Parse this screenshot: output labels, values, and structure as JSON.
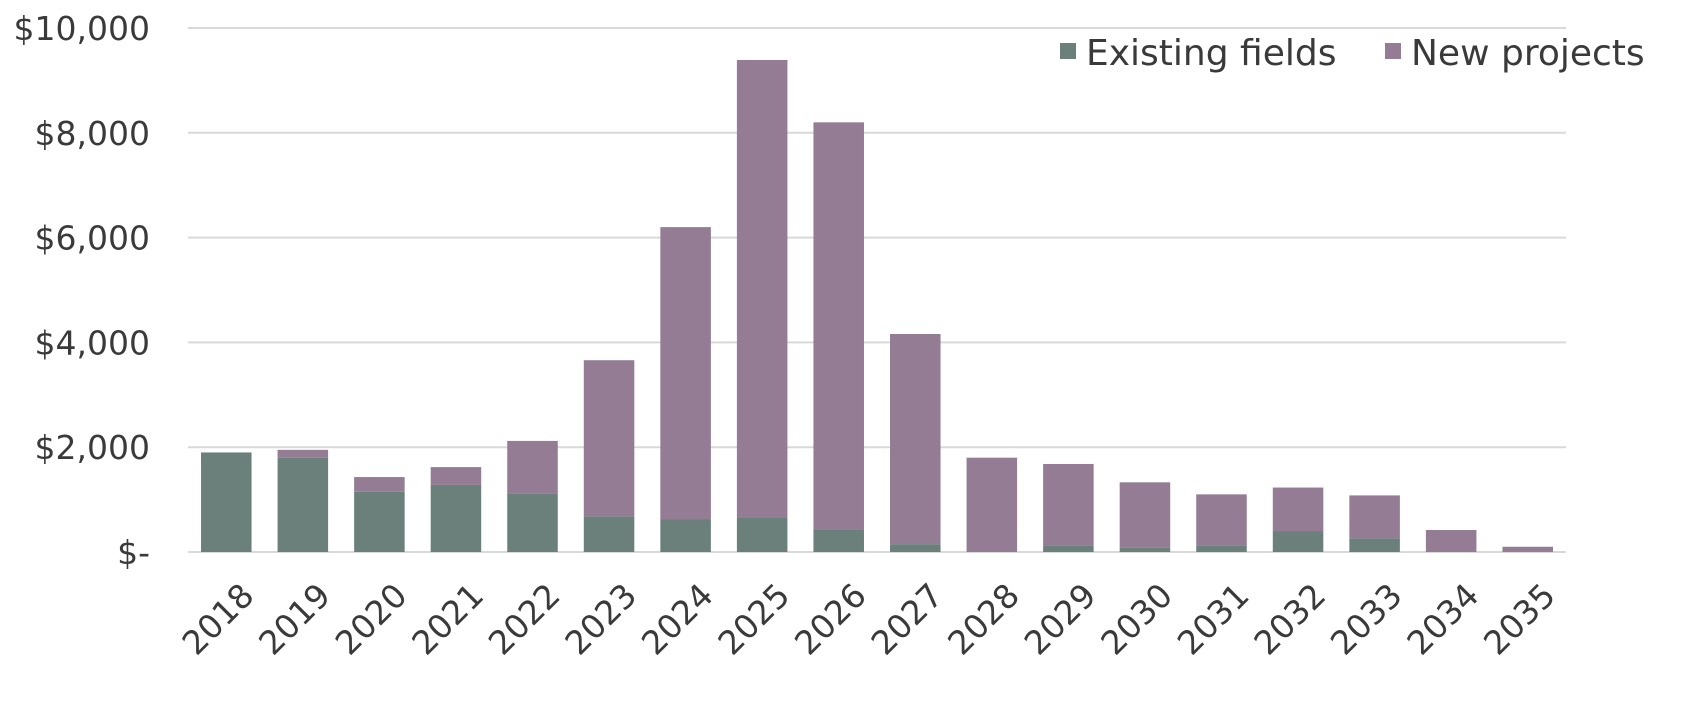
{
  "chart_data": {
    "type": "bar",
    "stacked": true,
    "title": "",
    "xlabel": "",
    "ylabel": "",
    "categories": [
      "2018",
      "2019",
      "2020",
      "2021",
      "2022",
      "2023",
      "2024",
      "2025",
      "2026",
      "2027",
      "2028",
      "2029",
      "2030",
      "2031",
      "2032",
      "2033",
      "2034",
      "2035"
    ],
    "series": [
      {
        "name": "Existing fields",
        "color": "#6b807b",
        "values": [
          1900,
          1800,
          1150,
          1280,
          1120,
          680,
          620,
          660,
          420,
          150,
          0,
          130,
          90,
          130,
          400,
          260,
          0,
          0
        ]
      },
      {
        "name": "New projects",
        "color": "#937c94",
        "values": [
          0,
          150,
          280,
          340,
          1000,
          2980,
          5580,
          8730,
          7780,
          4010,
          1800,
          1550,
          1240,
          970,
          830,
          820,
          420,
          100
        ]
      }
    ],
    "ylim": [
      0,
      10000
    ],
    "yticks": [
      0,
      2000,
      4000,
      6000,
      8000,
      10000
    ],
    "ytick_labels": [
      "$-",
      "$2,000",
      "$4,000",
      "$6,000",
      "$8,000",
      "$10,000"
    ],
    "grid": true,
    "legend_position": "top-right"
  }
}
